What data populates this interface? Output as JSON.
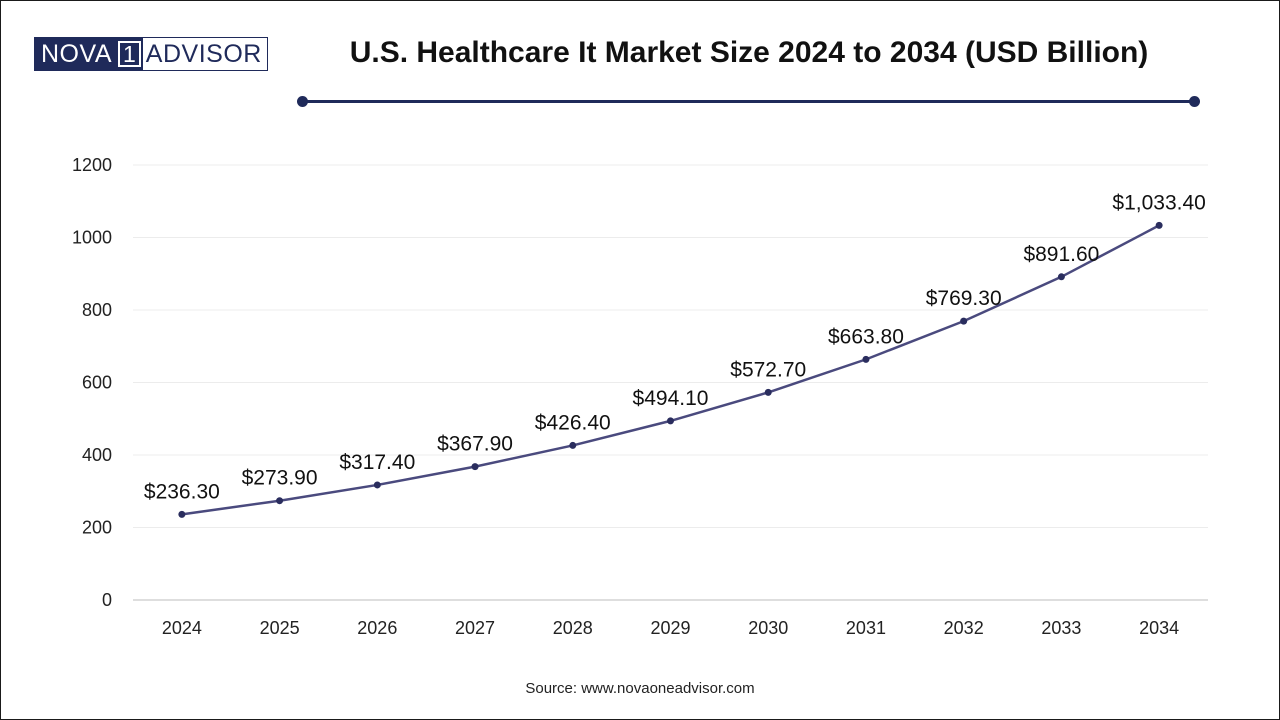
{
  "brand": {
    "part1": "NOVA",
    "part2": "1",
    "part3": "ADVISOR"
  },
  "source": "Source: www.novaoneadvisor.com",
  "colors": {
    "line": "#4a4a7e",
    "marker": "#2a2d5e",
    "brand": "#1f2a5a"
  },
  "chart_data": {
    "type": "line",
    "title": "U.S. Healthcare It Market Size 2024 to 2034 (USD Billion)",
    "xlabel": "",
    "ylabel": "",
    "categories": [
      "2024",
      "2025",
      "2026",
      "2027",
      "2028",
      "2029",
      "2030",
      "2031",
      "2032",
      "2033",
      "2034"
    ],
    "values": [
      236.3,
      273.9,
      317.4,
      367.9,
      426.4,
      494.1,
      572.7,
      663.8,
      769.3,
      891.6,
      1033.4
    ],
    "data_labels": [
      "$236.30",
      "$273.90",
      "$317.40",
      "$367.90",
      "$426.40",
      "$494.10",
      "$572.70",
      "$663.80",
      "$769.30",
      "$891.60",
      "$1,033.40"
    ],
    "ylim": [
      0,
      1200
    ],
    "yticks": [
      0,
      200,
      400,
      600,
      800,
      1000,
      1200
    ],
    "grid": true,
    "legend": "none"
  }
}
